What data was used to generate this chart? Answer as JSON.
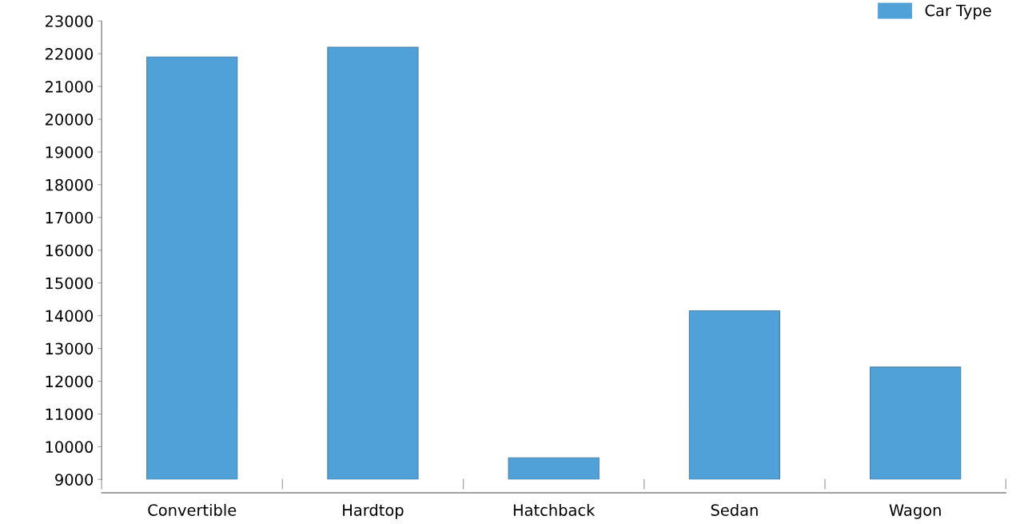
{
  "chart_data": {
    "type": "bar",
    "categories": [
      "Convertible",
      "Hardtop",
      "Hatchback",
      "Sedan",
      "Wagon"
    ],
    "series": [
      {
        "name": "Car Type",
        "color": "#4fa1d8",
        "values": [
          21900,
          22200,
          9660,
          14150,
          12430
        ]
      }
    ],
    "ylim": [
      9000,
      23000
    ],
    "yticks": [
      9000,
      10000,
      11000,
      12000,
      13000,
      14000,
      15000,
      16000,
      17000,
      18000,
      19000,
      20000,
      21000,
      22000,
      23000
    ],
    "grid": false,
    "legend": "top right"
  }
}
